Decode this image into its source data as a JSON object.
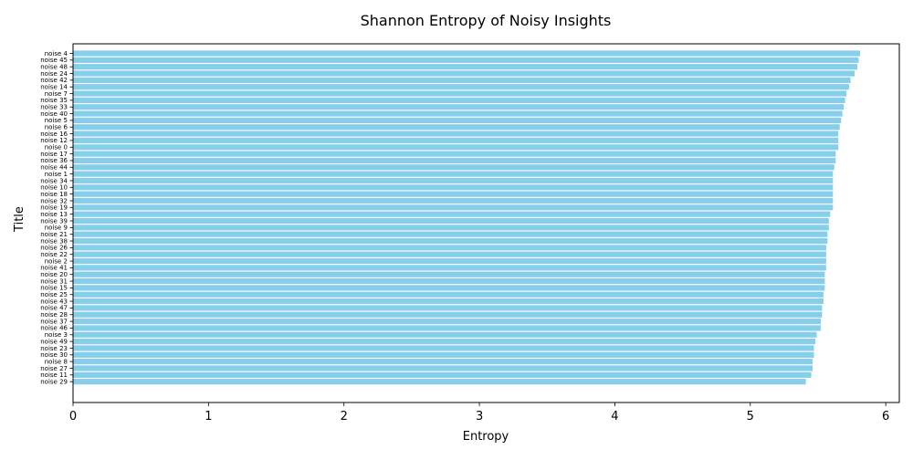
{
  "chart_data": {
    "type": "bar",
    "orientation": "horizontal",
    "title": "Shannon Entropy of Noisy Insights",
    "xlabel": "Entropy",
    "ylabel": "Title",
    "xlim": [
      0,
      6.1
    ],
    "xticks": [
      "0",
      "1",
      "2",
      "3",
      "4",
      "5",
      "6"
    ],
    "grid": false,
    "bar_color": "#87ceeb",
    "categories": [
      "noise 4",
      "noise 45",
      "noise 48",
      "noise 24",
      "noise 42",
      "noise 14",
      "noise 7",
      "noise 35",
      "noise 33",
      "noise 40",
      "noise 5",
      "noise 6",
      "noise 16",
      "noise 12",
      "noise 0",
      "noise 17",
      "noise 36",
      "noise 44",
      "noise 1",
      "noise 34",
      "noise 10",
      "noise 18",
      "noise 32",
      "noise 19",
      "noise 13",
      "noise 39",
      "noise 9",
      "noise 21",
      "noise 38",
      "noise 26",
      "noise 22",
      "noise 2",
      "noise 41",
      "noise 20",
      "noise 31",
      "noise 15",
      "noise 25",
      "noise 43",
      "noise 47",
      "noise 28",
      "noise 37",
      "noise 46",
      "noise 3",
      "noise 49",
      "noise 23",
      "noise 30",
      "noise 8",
      "noise 27",
      "noise 11",
      "noise 29"
    ],
    "values": [
      5.81,
      5.8,
      5.79,
      5.77,
      5.74,
      5.73,
      5.71,
      5.7,
      5.69,
      5.68,
      5.67,
      5.66,
      5.65,
      5.65,
      5.65,
      5.63,
      5.63,
      5.62,
      5.61,
      5.61,
      5.61,
      5.61,
      5.61,
      5.61,
      5.59,
      5.58,
      5.58,
      5.57,
      5.57,
      5.56,
      5.56,
      5.56,
      5.56,
      5.55,
      5.55,
      5.55,
      5.54,
      5.54,
      5.53,
      5.53,
      5.52,
      5.52,
      5.49,
      5.48,
      5.47,
      5.47,
      5.46,
      5.46,
      5.45,
      5.41
    ]
  }
}
